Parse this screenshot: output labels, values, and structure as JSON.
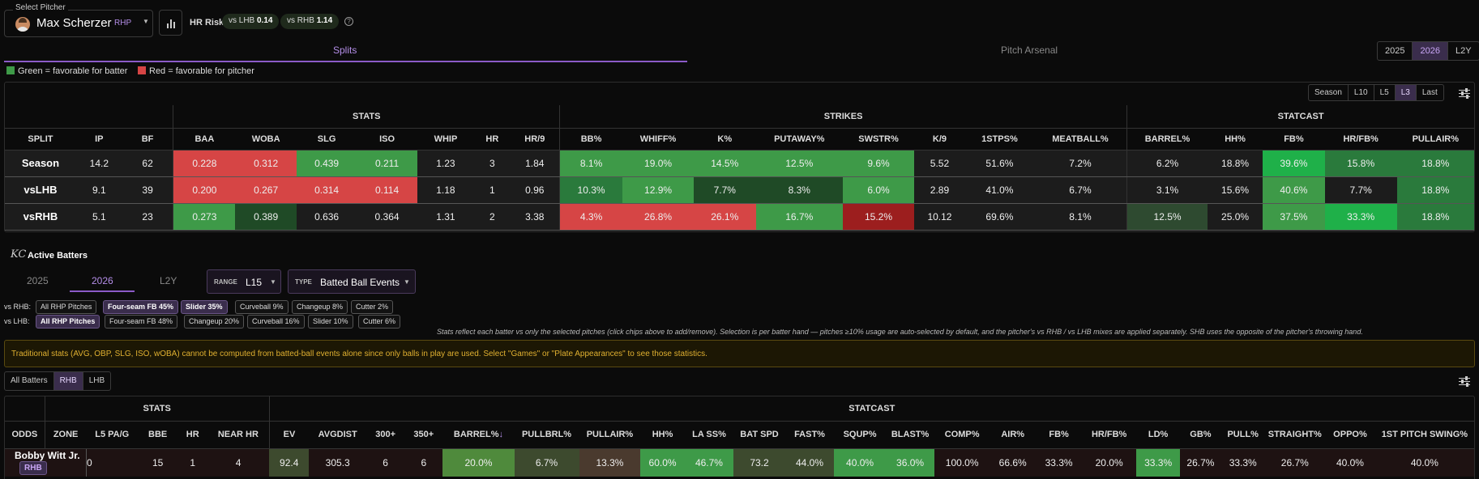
{
  "header": {
    "select_label": "Select Pitcher",
    "pitcher_name": "Max Scherzer",
    "pitcher_hand": "RHP",
    "hr_risk_label": "HR Risk",
    "hr_lhb_label": "vs LHB",
    "hr_lhb_value": "0.14",
    "hr_rhb_label": "vs RHB",
    "hr_rhb_value": "1.14",
    "help": "?"
  },
  "tabs": {
    "splits": "Splits",
    "arsenal": "Pitch Arsenal"
  },
  "years": [
    "2025",
    "2026",
    "L2Y"
  ],
  "legend": {
    "green": "Green = favorable for batter",
    "red": "Red = favorable for pitcher"
  },
  "ranges": [
    "Season",
    "L10",
    "L5",
    "L3",
    "Last"
  ],
  "splits_table": {
    "groups": [
      "STATS",
      "STRIKES",
      "STATCAST"
    ],
    "columns": [
      "SPLIT",
      "IP",
      "BF",
      "BAA",
      "WOBA",
      "SLG",
      "ISO",
      "WHIP",
      "HR",
      "HR/9",
      "BB%",
      "WHIFF%",
      "K%",
      "PUTAWAY%",
      "SWSTR%",
      "K/9",
      "1STPS%",
      "MEATBALL%",
      "BARREL%",
      "HH%",
      "FB%",
      "HR/FB%",
      "PULLAIR%"
    ],
    "rows": [
      [
        "Season",
        "14.2",
        "62",
        "0.228",
        "0.312",
        "0.439",
        "0.211",
        "1.23",
        "3",
        "1.84",
        "8.1%",
        "19.0%",
        "14.5%",
        "12.5%",
        "9.6%",
        "5.52",
        "51.6%",
        "7.2%",
        "6.2%",
        "18.8%",
        "39.6%",
        "15.8%",
        "18.8%"
      ],
      [
        "vsLHB",
        "9.1",
        "39",
        "0.200",
        "0.267",
        "0.314",
        "0.114",
        "1.18",
        "1",
        "0.96",
        "10.3%",
        "12.9%",
        "7.7%",
        "8.3%",
        "6.0%",
        "2.89",
        "41.0%",
        "6.7%",
        "3.1%",
        "15.6%",
        "40.6%",
        "7.7%",
        "18.8%"
      ],
      [
        "vsRHB",
        "5.1",
        "23",
        "0.273",
        "0.389",
        "0.636",
        "0.364",
        "1.31",
        "2",
        "3.38",
        "4.3%",
        "26.8%",
        "26.1%",
        "16.7%",
        "15.2%",
        "10.12",
        "69.6%",
        "8.1%",
        "12.5%",
        "25.0%",
        "37.5%",
        "33.3%",
        "18.8%"
      ]
    ],
    "colors": [
      [
        "#1c1c1c",
        "#1c1c1c",
        "#1c1c1c",
        "#d64545",
        "#d64545",
        "#3e9a48",
        "#3e9a48",
        "#1c1c1c",
        "#1c1c1c",
        "#1c1c1c",
        "#3e9a48",
        "#3e9a48",
        "#3e9a48",
        "#3e9a48",
        "#3e9a48",
        "#1c1c1c",
        "#1c1c1c",
        "#1c1c1c",
        "#1c1c1c",
        "#1c1c1c",
        "#1fb049",
        "#2a7a3c",
        "#2a7a3c"
      ],
      [
        "#1c1c1c",
        "#1c1c1c",
        "#1c1c1c",
        "#d64545",
        "#d64545",
        "#d64545",
        "#d64545",
        "#1c1c1c",
        "#1c1c1c",
        "#1c1c1c",
        "#2a7a3c",
        "#3e9a48",
        "#1f4a26",
        "#1f4a26",
        "#3e9a48",
        "#1c1c1c",
        "#1c1c1c",
        "#1c1c1c",
        "#1c1c1c",
        "#1c1c1c",
        "#3e9a48",
        "#1c1c1c",
        "#2a7a3c"
      ],
      [
        "#1c1c1c",
        "#1c1c1c",
        "#1c1c1c",
        "#3e9a48",
        "#1f4a26",
        "#1c1c1c",
        "#1c1c1c",
        "#1c1c1c",
        "#1c1c1c",
        "#1c1c1c",
        "#d64545",
        "#d64545",
        "#d64545",
        "#3e9a48",
        "#9c1e1e",
        "#1c1c1c",
        "#1c1c1c",
        "#1c1c1c",
        "#2e4a30",
        "#1c1c1c",
        "#3e9a48",
        "#1fb049",
        "#2a7a3c"
      ]
    ]
  },
  "active": {
    "title": "Active Batters",
    "team_logo": "KC",
    "years": [
      "2025",
      "2026",
      "L2Y"
    ],
    "range_key": "RANGE",
    "range_val": "L15",
    "type_key": "TYPE",
    "type_val": "Batted Ball Events",
    "vs_rhb_label": "vs RHB:",
    "vs_rhb_chips": [
      "All RHP Pitches",
      "Four-seam FB 45%",
      "Slider 35%",
      "Curveball 9%",
      "Changeup 8%",
      "Cutter 2%"
    ],
    "vs_lhb_label": "vs LHB:",
    "vs_lhb_chips": [
      "All RHP Pitches",
      "Four-seam FB 48%",
      "Changeup 20%",
      "Curveball 16%",
      "Slider 10%",
      "Cutter 6%"
    ],
    "note": "Stats reflect each batter vs only the selected pitches (click chips above to add/remove). Selection is per batter hand — pitches ≥10% usage are auto-selected by default, and the pitcher's vs RHB / vs LHB mixes are applied separately. SHB uses the opposite of the pitcher's throwing hand.",
    "warning": "Traditional stats (AVG, OBP, SLG, ISO, wOBA) cannot be computed from batted-ball events alone since only balls in play are used. Select \"Games\" or \"Plate Appearances\" to see those statistics.",
    "hand_filter": [
      "All Batters",
      "RHB",
      "LHB"
    ]
  },
  "batters_table": {
    "groups": [
      "STATS",
      "STATCAST"
    ],
    "columns": [
      "ODDS",
      "ZONE",
      "L5 PA/G",
      "BBE",
      "HR",
      "NEAR HR",
      "EV",
      "AVGDIST",
      "300+",
      "350+",
      "BARREL%",
      "PULLBRL%",
      "PULLAIR%",
      "HH%",
      "LA SS%",
      "BAT SPD",
      "FAST%",
      "SQUP%",
      "BLAST%",
      "COMP%",
      "AIR%",
      "FB%",
      "HR/FB%",
      "LD%",
      "GB%",
      "PULL%",
      "STRAIGHT%",
      "OPPO%",
      "1ST PITCH SWING%"
    ],
    "sort_icon": "↓",
    "row": {
      "name": "Bobby Witt Jr.",
      "hand": "RHB",
      "values": [
        "0",
        "15",
        "1",
        "4",
        "92.4",
        "305.3",
        "6",
        "6",
        "20.0%",
        "6.7%",
        "13.3%",
        "60.0%",
        "46.7%",
        "73.2",
        "44.0%",
        "40.0%",
        "36.0%",
        "100.0%",
        "66.6%",
        "33.3%",
        "20.0%",
        "33.3%",
        "26.7%",
        "33.3%",
        "26.7%",
        "40.0%",
        "40.0%"
      ]
    },
    "row_colors": [
      "#1e1212",
      "#1e1212",
      "#1e1212",
      "#1e1212",
      "#3d4a2e",
      "#1e1212",
      "#1e1212",
      "#1e1212",
      "#4f8a3c",
      "#3d4a2e",
      "#4a3a2e",
      "#3e9a48",
      "#3e9a48",
      "#3d4a2e",
      "#3d4a2e",
      "#3e9a48",
      "#3e9a48",
      "#1e1212",
      "#1e1212",
      "#1e1212",
      "#1e1212",
      "#3e9a48",
      "#1e1212",
      "#1e1212",
      "#1e1212",
      "#1e1212",
      "#1e1212"
    ]
  }
}
